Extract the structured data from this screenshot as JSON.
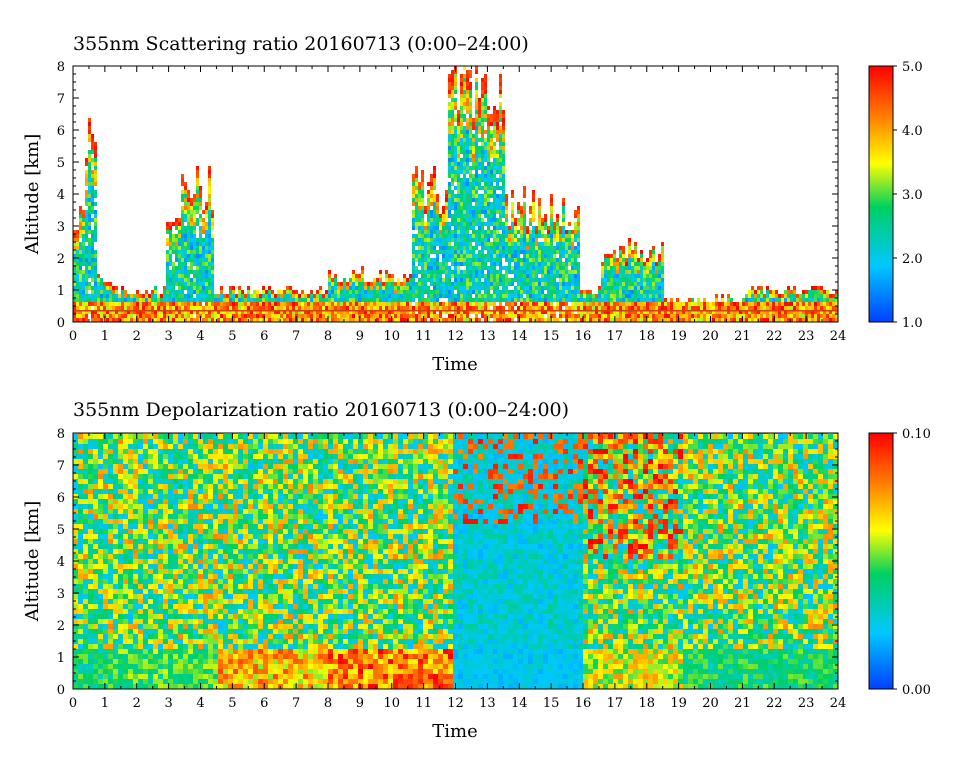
{
  "chart_data": [
    {
      "type": "heatmap",
      "title": "355nm Scattering ratio  20160713 (0:00–24:00)",
      "xlabel": "Time",
      "ylabel": "Altitude [km]",
      "xlim": [
        0,
        24
      ],
      "ylim": [
        0,
        8
      ],
      "x_ticks": [
        "0",
        "1",
        "2",
        "3",
        "4",
        "5",
        "6",
        "7",
        "8",
        "9",
        "10",
        "11",
        "12",
        "13",
        "14",
        "15",
        "16",
        "17",
        "18",
        "19",
        "20",
        "21",
        "22",
        "23",
        "24"
      ],
      "y_ticks": [
        "0",
        "1",
        "2",
        "3",
        "4",
        "5",
        "6",
        "7",
        "8"
      ],
      "colorbar": {
        "range": [
          1.0,
          5.0
        ],
        "labels": [
          "1.0",
          "2.0",
          "3.0",
          "4.0",
          "5.0"
        ],
        "colors": [
          "#0040ff",
          "#00c8ff",
          "#00d060",
          "#ffff00",
          "#ff8000",
          "#ff0000"
        ]
      },
      "features": [
        {
          "t0": 0.0,
          "t1": 0.35,
          "top_km": 3.8
        },
        {
          "t0": 0.35,
          "t1": 0.7,
          "top_km": 5.8
        },
        {
          "t0": 0.7,
          "t1": 1.2,
          "top_km": 1.3
        },
        {
          "t0": 1.2,
          "t1": 2.9,
          "top_km": 1.0
        },
        {
          "t0": 2.9,
          "t1": 3.3,
          "top_km": 3.2
        },
        {
          "t0": 3.3,
          "t1": 4.0,
          "top_km": 4.5
        },
        {
          "t0": 4.0,
          "t1": 4.4,
          "top_km": 4.5
        },
        {
          "t0": 4.4,
          "t1": 8.0,
          "top_km": 1.0
        },
        {
          "t0": 8.0,
          "t1": 10.6,
          "top_km": 1.5
        },
        {
          "t0": 10.6,
          "t1": 11.7,
          "top_km": 4.5
        },
        {
          "t0": 11.7,
          "t1": 13.5,
          "top_km": 8.0
        },
        {
          "t0": 13.5,
          "t1": 15.9,
          "top_km": 3.8
        },
        {
          "t0": 15.9,
          "t1": 16.5,
          "top_km": 1.0
        },
        {
          "t0": 16.5,
          "t1": 18.5,
          "top_km": 2.3
        },
        {
          "t0": 18.5,
          "t1": 21.0,
          "top_km": 0.7
        },
        {
          "t0": 21.0,
          "t1": 24.0,
          "top_km": 1.0
        }
      ],
      "surface_line_km": 0.35
    },
    {
      "type": "heatmap",
      "title": "355nm Depolarization ratio  20160713 (0:00–24:00)",
      "xlabel": "Time",
      "ylabel": "Altitude [km]",
      "xlim": [
        0,
        24
      ],
      "ylim": [
        0,
        8
      ],
      "x_ticks": [
        "0",
        "1",
        "2",
        "3",
        "4",
        "5",
        "6",
        "7",
        "8",
        "9",
        "10",
        "11",
        "12",
        "13",
        "14",
        "15",
        "16",
        "17",
        "18",
        "19",
        "20",
        "21",
        "22",
        "23",
        "24"
      ],
      "y_ticks": [
        "0",
        "1",
        "2",
        "3",
        "4",
        "5",
        "6",
        "7",
        "8"
      ],
      "colorbar": {
        "range": [
          0.0,
          0.1
        ],
        "labels": [
          "0.00",
          "0.10"
        ],
        "colors": [
          "#0040ff",
          "#00c8ff",
          "#00d060",
          "#ffff00",
          "#ff8000",
          "#ff0000"
        ]
      },
      "features": [
        {
          "t0": 0.0,
          "t1": 1.0,
          "level": 0.45
        },
        {
          "t0": 1.0,
          "t1": 4.4,
          "level": 0.5
        },
        {
          "t0": 4.4,
          "t1": 8.0,
          "level": 0.75
        },
        {
          "t0": 8.0,
          "t1": 11.9,
          "level": 0.85
        },
        {
          "t0": 11.9,
          "t1": 15.9,
          "level": 0.25
        },
        {
          "t0": 15.9,
          "t1": 19.0,
          "level": 0.65
        },
        {
          "t0": 19.0,
          "t1": 24.0,
          "level": 0.45
        }
      ]
    }
  ]
}
